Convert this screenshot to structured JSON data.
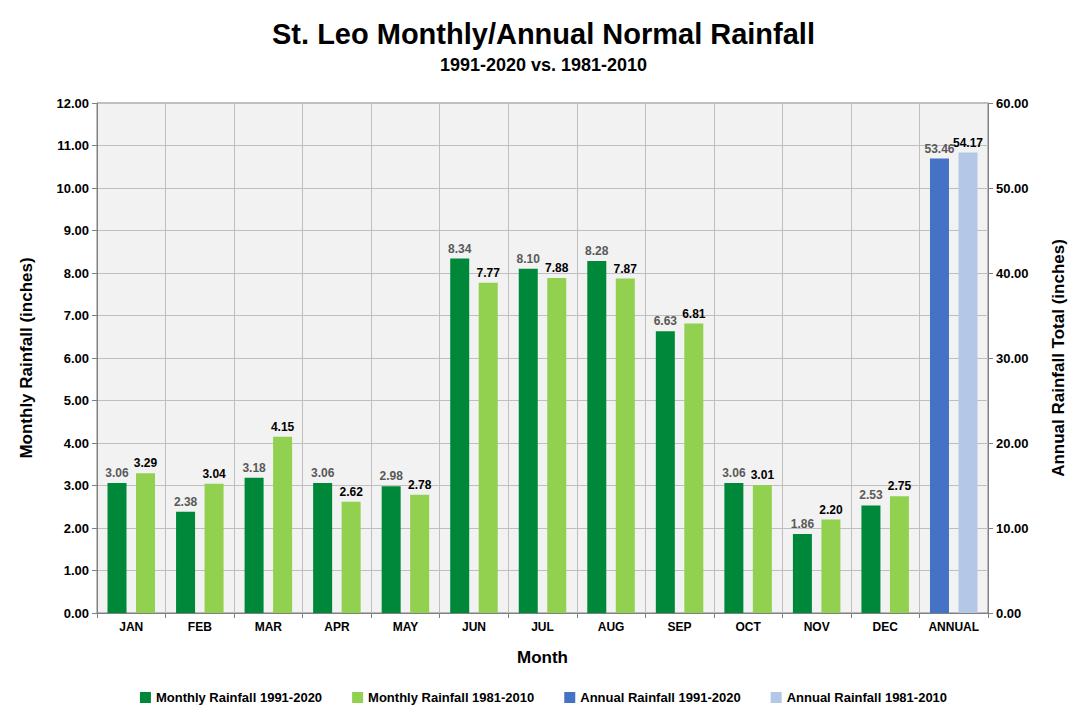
{
  "chart_data": {
    "type": "bar",
    "title": "St. Leo Monthly/Annual Normal Rainfall",
    "subtitle": "1991-2020 vs. 1981-2010",
    "xlabel": "Month",
    "ylabel": "Monthly Rainfall (inches)",
    "y2label": "Annual Rainfall Total (inches)",
    "categories": [
      "JAN",
      "FEB",
      "MAR",
      "APR",
      "MAY",
      "JUN",
      "JUL",
      "AUG",
      "SEP",
      "OCT",
      "NOV",
      "DEC",
      "ANNUAL"
    ],
    "series": [
      {
        "name": "Monthly Rainfall 1991-2020",
        "color": "#00883a",
        "values": [
          3.06,
          2.38,
          3.18,
          3.06,
          2.98,
          8.34,
          8.1,
          8.28,
          6.63,
          3.06,
          1.86,
          2.53,
          null
        ],
        "value_labels": [
          "3.06",
          "2.38",
          "3.18",
          "3.06",
          "2.98",
          "8.34",
          "8.10",
          "8.28",
          "6.63",
          "3.06",
          "1.86",
          "2.53",
          null
        ]
      },
      {
        "name": "Monthly Rainfall 1981-2010",
        "color": "#92d050",
        "values": [
          3.29,
          3.04,
          4.15,
          2.62,
          2.78,
          7.77,
          7.88,
          7.87,
          6.81,
          3.01,
          2.2,
          2.75,
          null
        ],
        "value_labels": [
          "3.29",
          "3.04",
          "4.15",
          "2.62",
          "2.78",
          "7.77",
          "7.88",
          "7.87",
          "6.81",
          "3.01",
          "2.20",
          "2.75",
          null
        ]
      },
      {
        "name": "Annual Rainfall 1991-2020",
        "color": "#4472c4",
        "axis": "y2",
        "values": [
          null,
          null,
          null,
          null,
          null,
          null,
          null,
          null,
          null,
          null,
          null,
          null,
          53.46
        ],
        "value_labels": [
          null,
          null,
          null,
          null,
          null,
          null,
          null,
          null,
          null,
          null,
          null,
          null,
          "53.46"
        ]
      },
      {
        "name": "Annual Rainfall 1981-2010",
        "color": "#b4c7e7",
        "axis": "y2",
        "values": [
          null,
          null,
          null,
          null,
          null,
          null,
          null,
          null,
          null,
          null,
          null,
          null,
          54.17
        ],
        "value_labels": [
          null,
          null,
          null,
          null,
          null,
          null,
          null,
          null,
          null,
          null,
          null,
          null,
          "54.17"
        ]
      }
    ],
    "ylim": [
      0,
      12
    ],
    "yticks": [
      {
        "value": 0,
        "label": "0.00"
      },
      {
        "value": 1,
        "label": "1.00"
      },
      {
        "value": 2,
        "label": "2.00"
      },
      {
        "value": 3,
        "label": "3.00"
      },
      {
        "value": 4,
        "label": "4.00"
      },
      {
        "value": 5,
        "label": "5.00"
      },
      {
        "value": 6,
        "label": "6.00"
      },
      {
        "value": 7,
        "label": "7.00"
      },
      {
        "value": 8,
        "label": "8.00"
      },
      {
        "value": 9,
        "label": "9.00"
      },
      {
        "value": 10,
        "label": "10.00"
      },
      {
        "value": 11,
        "label": "11.00"
      },
      {
        "value": 12,
        "label": "12.00"
      }
    ],
    "y2lim": [
      0,
      60
    ],
    "y2ticks": [
      {
        "value": 0,
        "label": "0.00"
      },
      {
        "value": 10,
        "label": "10.00"
      },
      {
        "value": 20,
        "label": "20.00"
      },
      {
        "value": 30,
        "label": "30.00"
      },
      {
        "value": 40,
        "label": "40.00"
      },
      {
        "value": 50,
        "label": "50.00"
      },
      {
        "value": 60,
        "label": "60.00"
      }
    ],
    "grid": true,
    "legend": "bottom",
    "data_labels": true
  }
}
